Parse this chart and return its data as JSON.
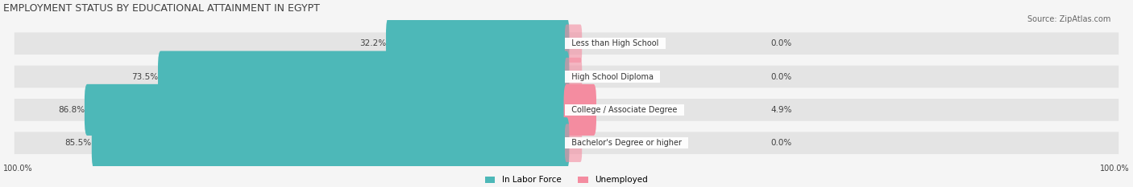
{
  "title": "EMPLOYMENT STATUS BY EDUCATIONAL ATTAINMENT IN EGYPT",
  "source": "Source: ZipAtlas.com",
  "categories": [
    "Less than High School",
    "High School Diploma",
    "College / Associate Degree",
    "Bachelor's Degree or higher"
  ],
  "in_labor_force": [
    32.2,
    73.5,
    86.8,
    85.5
  ],
  "unemployed": [
    0.0,
    0.0,
    4.9,
    0.0
  ],
  "labor_color": "#4db8b8",
  "unemployed_color": "#f48ca0",
  "bg_bar_color": "#e8e8e8",
  "bar_bg_color": "#f0f0f0",
  "max_val": 100.0,
  "title_fontsize": 9,
  "label_fontsize": 7.5,
  "tick_fontsize": 7,
  "source_fontsize": 7,
  "bar_height": 0.55,
  "legend_labor": "In Labor Force",
  "legend_unemployed": "Unemployed",
  "axis_labels": [
    "100.0%",
    "100.0%"
  ],
  "title_color": "#404040",
  "text_color": "#404040",
  "category_bg": "#ffffff"
}
